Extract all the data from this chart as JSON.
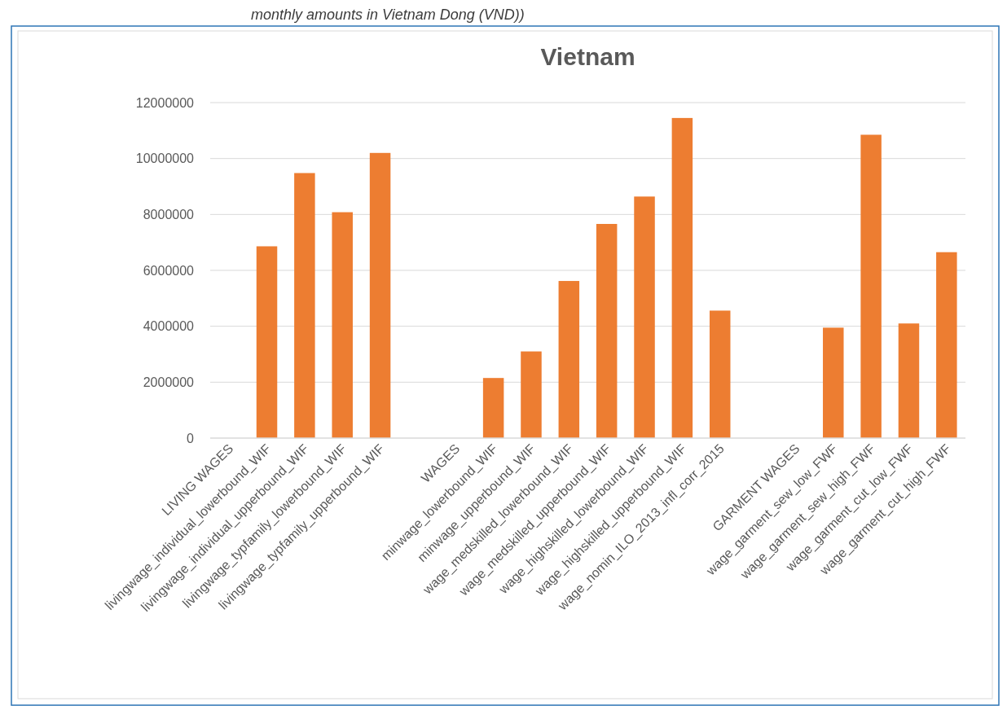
{
  "chart_data": {
    "type": "bar",
    "title": "Vietnam",
    "annotations": [
      "monthly amounts in Vietnam Dong (VND))"
    ],
    "categories": [
      "LIVING WAGES",
      "livingwage_individual_lowerbound_WIF",
      "livingwage_individual_upperbound_WIF",
      "livingwage_typfamily_lowerbound_WIF",
      "livingwage_typfamily_upperbound_WIF",
      null,
      "WAGES",
      "minwage_lowerbound_WIF",
      "minwage_upperbound_WIF",
      "wage_medskilled_lowerbound_WIF",
      "wage_medskilled_upperbound_WIF",
      "wage_highskilled_lowerbound_WIF",
      "wage_highskilled_upperbound_WIF",
      "wage_nomin_ILO_2013_infl_corr_2015",
      null,
      "GARMENT WAGES",
      "wage_garment_sew_low_FWF",
      "wage_garment_sew_high_FWF",
      "wage_garment_cut_low_FWF",
      "wage_garment_cut_high_FWF"
    ],
    "values": [
      null,
      6860000,
      9480000,
      8080000,
      10200000,
      null,
      null,
      2150000,
      3100000,
      5620000,
      7660000,
      8640000,
      11450000,
      4560000,
      null,
      null,
      3950000,
      10850000,
      4100000,
      6650000
    ],
    "color": "#ed7d31",
    "ylim": [
      0,
      12000000
    ],
    "yticks": [
      0,
      2000000,
      4000000,
      6000000,
      8000000,
      10000000,
      12000000
    ],
    "grid": "y"
  }
}
